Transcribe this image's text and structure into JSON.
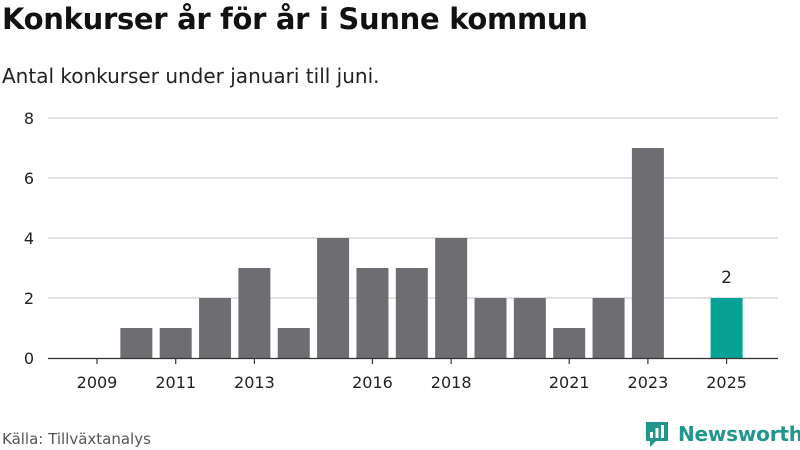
{
  "header": {
    "title": "Konkurser år för år i Sunne kommun",
    "subtitle": "Antal konkurser under januari till juni."
  },
  "footer": {
    "source": "Källa: Tillväxtanalys",
    "brand": "Newsworthy"
  },
  "colors": {
    "bar": "#6e6d72",
    "highlight": "#06a296",
    "grid": "#d9d9d9",
    "brand": "#21968c"
  },
  "icons": {
    "logo": "newsworthy-chart-bubble-icon"
  },
  "chart_data": {
    "type": "bar",
    "title": "Konkurser år för år i Sunne kommun",
    "subtitle": "Antal konkurser under januari till juni.",
    "categories": [
      2009,
      2010,
      2011,
      2012,
      2013,
      2014,
      2015,
      2016,
      2017,
      2018,
      2019,
      2020,
      2021,
      2022,
      2023,
      2024,
      2025
    ],
    "values": [
      0,
      1,
      1,
      2,
      3,
      1,
      4,
      3,
      3,
      4,
      2,
      2,
      1,
      2,
      7,
      0,
      2
    ],
    "x_tick_labels": [
      "2009",
      "2011",
      "2013",
      "2016",
      "2018",
      "2021",
      "2023",
      "2025"
    ],
    "y_ticks": [
      0,
      2,
      4,
      6,
      8
    ],
    "ylim": [
      0,
      8
    ],
    "highlight_category": 2025,
    "data_labels": [
      {
        "category": 2025,
        "label": "2"
      }
    ],
    "grid": true,
    "legend": "none",
    "xlabel": "",
    "ylabel": ""
  }
}
